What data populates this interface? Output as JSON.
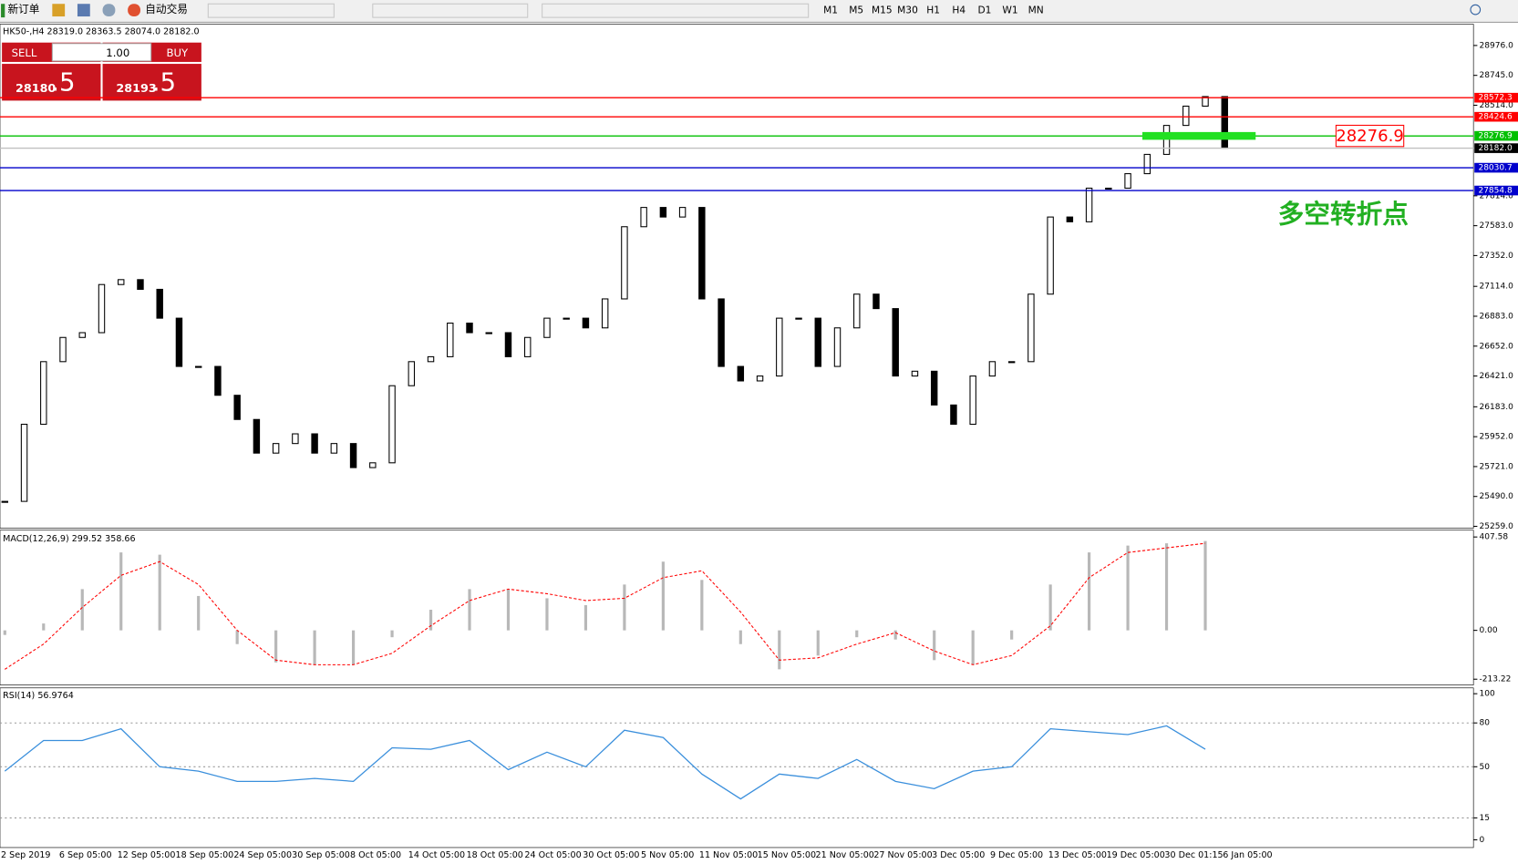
{
  "toolbar": {
    "new_order": "新订单",
    "auto_trading": "自动交易",
    "timeframes": [
      "M1",
      "M5",
      "M15",
      "M30",
      "H1",
      "H4",
      "D1",
      "W1",
      "MN"
    ]
  },
  "header": "HK50-,H4  28319.0 28363.5 28074.0 28182.0",
  "trade_panel": {
    "sell": "SELL",
    "lot": "1.00",
    "buy": "BUY",
    "sell_big": "28180",
    "sell_frac": ".5",
    "buy_big": "28193",
    "buy_frac": ".5"
  },
  "annotations": {
    "price_box": "28276.9",
    "note": "多空转折点"
  },
  "time_axis": {
    "labels": [
      "2 Sep 2019",
      "6 Sep 05:00",
      "12 Sep 05:00",
      "18 Sep 05:00",
      "24 Sep 05:00",
      "30 Sep 05:00",
      "8 Oct 05:00",
      "14 Oct 05:00",
      "18 Oct 05:00",
      "24 Oct 05:00",
      "30 Oct 05:00",
      "5 Nov 05:00",
      "11 Nov 05:00",
      "15 Nov 05:00",
      "21 Nov 05:00",
      "27 Nov 05:00",
      "3 Dec 05:00",
      "9 Dec 05:00",
      "13 Dec 05:00",
      "19 Dec 05:00",
      "30 Dec 01:15",
      "6 Jan 05:00"
    ]
  },
  "chart_data": [
    {
      "type": "candlestick",
      "values": [
        25452,
        26048,
        26532,
        26719,
        26756,
        27128,
        27166,
        27091,
        26868,
        26495,
        26495,
        26272,
        26085,
        25825,
        25899,
        25974,
        25825,
        25899,
        25713,
        25750,
        26346,
        26532,
        26570,
        26830,
        26756,
        26756,
        26570,
        26719,
        26868,
        26868,
        26793,
        27017,
        27575,
        27724,
        27650,
        27724,
        27017,
        26495,
        26383,
        26421,
        26868,
        26868,
        26495,
        26793,
        27054,
        26942,
        26421,
        26458,
        26197,
        26048,
        26421,
        26532,
        26532,
        27054,
        27650,
        27613,
        27873,
        27873,
        27985,
        28134,
        28358,
        28507,
        28581,
        28182.0
      ],
      "ylim": [
        25259,
        28976
      ],
      "yticks": [
        {
          "value": 28976,
          "label": "28976.0"
        },
        {
          "value": 28745,
          "label": "28745.0"
        },
        {
          "value": 28514,
          "label": "28514.0"
        },
        {
          "value": 27814,
          "label": "27814.0"
        },
        {
          "value": 27583,
          "label": "27583.0"
        },
        {
          "value": 27352,
          "label": "27352.0"
        },
        {
          "value": 27114,
          "label": "27114.0"
        },
        {
          "value": 26883,
          "label": "26883.0"
        },
        {
          "value": 26652,
          "label": "26652.0"
        },
        {
          "value": 26421,
          "label": "26421.0"
        },
        {
          "value": 26183,
          "label": "26183.0"
        },
        {
          "value": 25952,
          "label": "25952.0"
        },
        {
          "value": 25721,
          "label": "25721.0"
        },
        {
          "value": 25490,
          "label": "25490.0"
        },
        {
          "value": 25259,
          "label": "25259.0"
        }
      ],
      "levels": [
        {
          "value": 28572.3,
          "color": "#ff0000"
        },
        {
          "value": 28424.6,
          "color": "#ff0000"
        },
        {
          "value": 28276.9,
          "color": "#00c000"
        },
        {
          "value": 28182,
          "label": "28182.0",
          "color": "#000000"
        },
        {
          "value": 28030.7,
          "color": "#0000cc"
        },
        {
          "value": 27854.8,
          "color": "#0000cc"
        }
      ]
    },
    {
      "type": "bar",
      "title": "MACD(12,26,9) 299.52 358.66",
      "series": [
        {
          "color": "#b8b8b8",
          "values": [
            -20,
            30,
            180,
            340,
            330,
            150,
            -60,
            -140,
            -150,
            -150,
            -30,
            90,
            180,
            180,
            140,
            110,
            200,
            300,
            220,
            -60,
            -170,
            -110,
            -30,
            -40,
            -130,
            -150,
            -40,
            200,
            340,
            370,
            380,
            390
          ]
        },
        {
          "color": "#ff0000",
          "values": [
            -170,
            -60,
            100,
            240,
            300,
            200,
            0,
            -130,
            -150,
            -150,
            -100,
            20,
            130,
            180,
            160,
            130,
            140,
            230,
            260,
            80,
            -130,
            -120,
            -60,
            -10,
            -90,
            -150,
            -110,
            20,
            230,
            340,
            360,
            380
          ]
        }
      ],
      "ylim": [
        -213.22,
        407.58
      ],
      "yticks": [
        407.58,
        {
          "value": 0,
          "label": "0.00"
        },
        -213.22
      ]
    },
    {
      "type": "line",
      "title": "RSI(14) 56.9764",
      "series": [
        {
          "color": "#3a8fdc",
          "values": [
            47,
            68,
            68,
            76,
            50,
            47,
            40,
            40,
            42,
            40,
            63,
            62,
            68,
            48,
            60,
            50,
            75,
            70,
            45,
            28,
            45,
            42,
            55,
            40,
            35,
            47,
            50,
            76,
            74,
            72,
            78,
            62
          ]
        }
      ],
      "ylim": [
        0,
        100
      ],
      "yticks": [
        100,
        80,
        50,
        15,
        0
      ]
    }
  ]
}
